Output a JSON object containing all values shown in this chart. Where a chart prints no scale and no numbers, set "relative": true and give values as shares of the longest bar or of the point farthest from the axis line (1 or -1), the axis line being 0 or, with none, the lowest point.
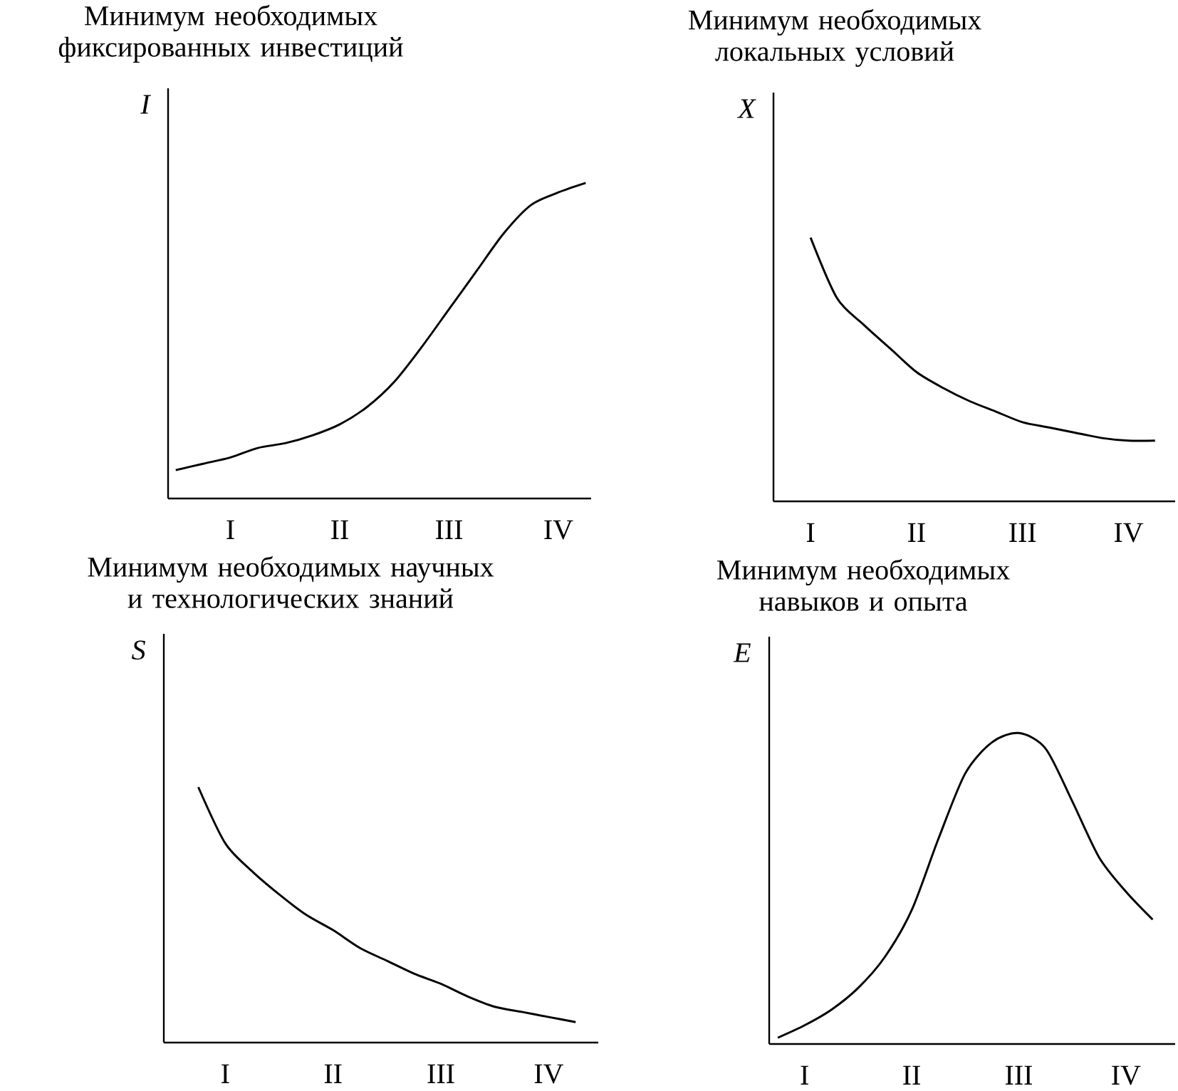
{
  "chart_data": [
    {
      "type": "line",
      "title": "Минимум необходимых фиксированных инвестиций",
      "ylabel": "I",
      "relative": true,
      "color": "#000000",
      "marker": "none",
      "categories": [
        null,
        null,
        "I",
        null,
        null,
        null,
        "II",
        null,
        null,
        null,
        "III",
        null,
        null,
        null,
        "IV",
        null
      ],
      "values": [
        0.09,
        0.11,
        0.13,
        0.16,
        0.175,
        0.2,
        0.235,
        0.29,
        0.37,
        0.48,
        0.6,
        0.72,
        0.84,
        0.93,
        0.97,
        1.0
      ]
    },
    {
      "type": "line",
      "title": "Минимум необходимых локальных условий",
      "ylabel": "X",
      "relative": true,
      "color": "#000000",
      "marker": "none",
      "categories": [
        null,
        null,
        "I",
        null,
        null,
        null,
        "II",
        null,
        null,
        null,
        "III",
        null,
        null,
        null,
        "IV",
        null
      ],
      "values": [
        null,
        null,
        1.0,
        0.77,
        0.67,
        0.58,
        0.49,
        0.43,
        0.38,
        0.34,
        0.3,
        0.28,
        0.26,
        0.24,
        0.23,
        0.23
      ]
    },
    {
      "type": "line",
      "title": "Минимум необходимых научных и технологических знаний",
      "ylabel": "S",
      "relative": true,
      "color": "#000000",
      "marker": "none",
      "categories": [
        null,
        null,
        "I",
        null,
        null,
        null,
        "II",
        null,
        null,
        null,
        "III",
        null,
        null,
        null,
        "IV",
        null
      ],
      "values": [
        null,
        1.0,
        0.78,
        0.67,
        0.58,
        0.5,
        0.44,
        0.37,
        0.32,
        0.27,
        0.23,
        0.18,
        0.14,
        0.12,
        0.1,
        0.08
      ]
    },
    {
      "type": "line",
      "title": "Минимум необходимых навыков и опыта",
      "ylabel": "E",
      "relative": true,
      "color": "#000000",
      "marker": "none",
      "categories": [
        null,
        null,
        "I",
        null,
        null,
        null,
        "II",
        null,
        null,
        null,
        "III",
        null,
        null,
        null,
        "IV",
        null
      ],
      "values": [
        null,
        0.02,
        0.06,
        0.11,
        0.18,
        0.28,
        0.43,
        0.66,
        0.87,
        0.97,
        1.0,
        0.95,
        0.78,
        0.6,
        0.49,
        0.4
      ]
    }
  ]
}
